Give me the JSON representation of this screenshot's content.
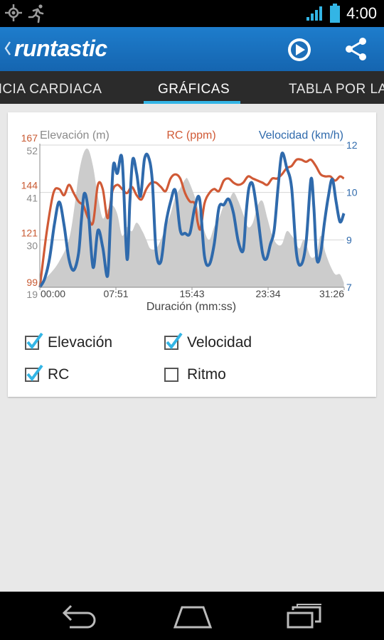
{
  "status_bar": {
    "time": "4:00",
    "icons": [
      "gps-icon",
      "runner-icon",
      "wifi-icon",
      "battery-icon"
    ]
  },
  "action_bar": {
    "logo_text": "runtastic",
    "icons": [
      "play-icon",
      "share-icon"
    ]
  },
  "tabs": [
    {
      "label": "FRECUENCIA CARDIACA"
    },
    {
      "label": "GRÁFICAS",
      "selected": true
    },
    {
      "label": "TABLA POR LAPSOS"
    }
  ],
  "chart_data": {
    "type": "line",
    "legend": {
      "elevation": "Elevación (m)",
      "hr": "RC (ppm)",
      "speed": "Velocidad (km/h)"
    },
    "xlabel": "Duración (mm:ss)",
    "x_ticks": [
      "00:00",
      "07:51",
      "15:43",
      "23:34",
      "31:26"
    ],
    "xlim": [
      0,
      31.43
    ],
    "hr_ticks": [
      "167",
      "144",
      "121",
      "99"
    ],
    "hr_ylim": [
      99,
      167
    ],
    "elev_ticks": [
      "52",
      "41",
      "30",
      "19"
    ],
    "elev_ylim": [
      19,
      52
    ],
    "speed_ticks": [
      "12",
      "10",
      "9",
      "7"
    ],
    "speed_ylim": [
      7,
      12
    ],
    "colors": {
      "hr": "#d05a36",
      "speed": "#2f6aac",
      "elevation": "#cccccc",
      "axis_hr": "#c85a32",
      "axis_elev": "#8a8a8a",
      "axis_speed": "#2f6aac"
    },
    "series": [
      {
        "name": "Elevación (m)",
        "x": [
          0,
          1,
          2,
          3,
          3.6,
          4,
          4.5,
          5,
          5.5,
          6,
          6.5,
          7,
          7.5,
          8,
          8.5,
          9,
          9.5,
          10,
          10.6,
          11,
          11.4,
          12,
          12.5,
          13,
          13.5,
          14,
          14.5,
          15,
          15.3,
          16,
          16.5,
          17,
          17.5,
          18,
          18.5,
          19,
          19.5,
          20,
          20.5,
          21,
          21.5,
          22,
          22.5,
          23,
          23.5,
          24,
          24.5,
          25,
          25.5,
          26,
          26.3,
          26.8,
          27.3,
          28,
          28.6,
          29,
          29.5,
          30,
          30.5,
          31,
          31.4
        ],
        "values": [
          20,
          22,
          25,
          30,
          38,
          45,
          50,
          51,
          47,
          40,
          35,
          37,
          38,
          36,
          31,
          33,
          32,
          34,
          32,
          30,
          28,
          28,
          30,
          33,
          36,
          40,
          42,
          44,
          44,
          40,
          36,
          32,
          30,
          33,
          35,
          38,
          39,
          41,
          39,
          36,
          33,
          34,
          38,
          39,
          35,
          31,
          29,
          29,
          32,
          31,
          30,
          28,
          30,
          26,
          27,
          31,
          27,
          24,
          22,
          22,
          20
        ]
      },
      {
        "name": "RC (ppm)",
        "x": [
          0,
          0.7,
          1.4,
          2,
          2.5,
          3,
          3.5,
          4,
          4.5,
          5,
          5.5,
          6,
          6.5,
          7,
          7.5,
          8,
          8.5,
          9,
          9.5,
          10,
          10.5,
          11,
          11.5,
          12,
          12.5,
          13,
          13.5,
          14,
          14.5,
          15,
          15.5,
          16,
          16.3,
          16.6,
          17,
          17.5,
          18,
          18.5,
          19,
          19.5,
          20,
          20.5,
          21,
          21.5,
          22,
          22.5,
          23,
          23.5,
          24,
          24.5,
          25,
          25.5,
          26,
          26.5,
          27,
          27.5,
          28,
          28.5,
          29,
          29.5,
          30,
          30.5,
          31,
          31.4
        ],
        "values": [
          99,
          125,
          144,
          146,
          143,
          148,
          144,
          140,
          138,
          132,
          130,
          148,
          146,
          132,
          145,
          148,
          146,
          144,
          147,
          143,
          141,
          146,
          149,
          149,
          147,
          145,
          151,
          153,
          151,
          144,
          140,
          139,
          130,
          127,
          139,
          144,
          146,
          145,
          150,
          151,
          149,
          148,
          149,
          152,
          151,
          150,
          149,
          148,
          151,
          151,
          153,
          156,
          157,
          160,
          160,
          159,
          160,
          157,
          153,
          152,
          152,
          150,
          152,
          151
        ]
      },
      {
        "name": "Velocidad (km/h)",
        "x": [
          0,
          0.5,
          1,
          1.5,
          2,
          2.5,
          3,
          3.5,
          4,
          4.3,
          4.6,
          5,
          5.5,
          6,
          6.5,
          7,
          7.3,
          7.6,
          8,
          8.5,
          9,
          9.3,
          9.6,
          10,
          10.4,
          10.8,
          11.2,
          11.6,
          12,
          12.5,
          13,
          13.5,
          14,
          14.5,
          15,
          15.5,
          16,
          16.5,
          17,
          17.5,
          18,
          18.5,
          19,
          19.5,
          20,
          20.5,
          21,
          21.3,
          21.6,
          22,
          22.5,
          23,
          23.4,
          23.8,
          24.2,
          24.6,
          25,
          25.5,
          26,
          26.5,
          27,
          27.5,
          28,
          28.3,
          28.6,
          29,
          29.4,
          29.8,
          30.2,
          30.6,
          31,
          31.4
        ],
        "values": [
          7,
          7.3,
          8,
          9.2,
          10,
          9.2,
          8,
          7.6,
          8.2,
          9.4,
          10.3,
          9.7,
          7.7,
          9,
          8.4,
          7.4,
          9.4,
          11.3,
          11,
          11.5,
          8,
          10,
          11.5,
          11,
          10.2,
          11.5,
          11.6,
          10.8,
          8.3,
          7.9,
          9.2,
          10,
          10.4,
          9,
          8.9,
          8.9,
          9.8,
          10.1,
          8.1,
          7.8,
          8.5,
          9.8,
          9.9,
          10.1,
          9.6,
          8.6,
          8.3,
          9.6,
          10.5,
          10.6,
          9.5,
          8.2,
          8,
          8.5,
          9,
          10.5,
          11.7,
          11.2,
          10.5,
          8.2,
          7.8,
          8.6,
          10.8,
          9.8,
          8,
          8.2,
          9.3,
          10.2,
          10.8,
          10,
          9.3,
          9.6
        ]
      }
    ]
  },
  "checkboxes": [
    {
      "label": "Elevación",
      "checked": true
    },
    {
      "label": "Velocidad",
      "checked": true
    },
    {
      "label": "RC",
      "checked": true
    },
    {
      "label": "Ritmo",
      "checked": false
    }
  ],
  "nav_bar": {
    "buttons": [
      "back-icon",
      "home-icon",
      "recents-icon"
    ]
  }
}
